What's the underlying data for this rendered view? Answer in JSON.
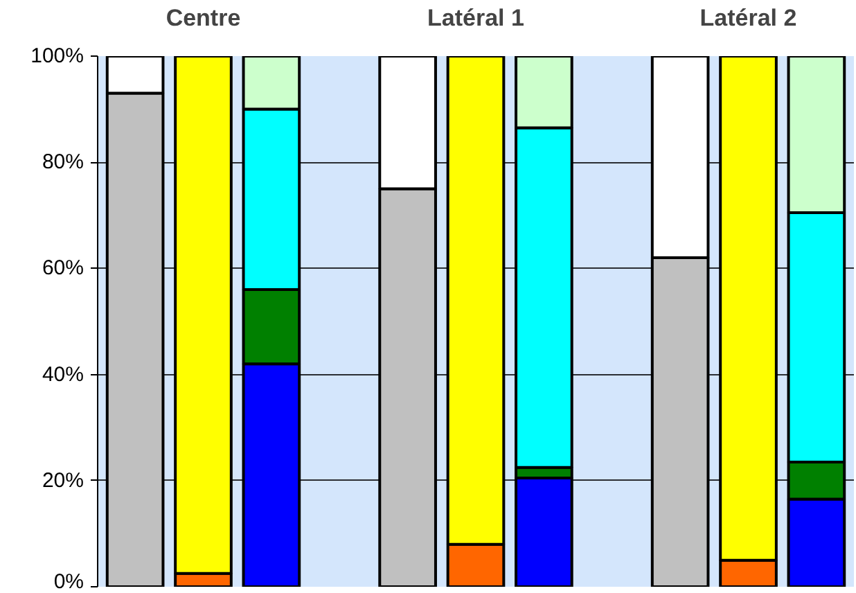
{
  "chart_data": {
    "type": "bar",
    "stacked": true,
    "categories": [
      null,
      "Centre",
      null,
      null,
      "Latéral 1",
      null,
      null,
      "Latéral 2",
      null
    ],
    "series": [
      {
        "color": "#c0c0c0",
        "values": [
          93,
          null,
          null,
          75,
          null,
          null,
          62,
          null,
          null
        ]
      },
      {
        "color": "#ffffff",
        "values": [
          7,
          null,
          null,
          25,
          null,
          null,
          38,
          null,
          null
        ]
      },
      {
        "color": "#ff6600",
        "values": [
          null,
          2.5,
          null,
          null,
          8,
          null,
          null,
          5,
          null
        ]
      },
      {
        "color": "#ffff00",
        "values": [
          null,
          97.5,
          null,
          null,
          92,
          null,
          null,
          95,
          null
        ]
      },
      {
        "color": "#0000ff",
        "values": [
          null,
          null,
          42,
          null,
          null,
          20.5,
          null,
          null,
          16.5
        ]
      },
      {
        "color": "#008000",
        "values": [
          null,
          null,
          14,
          null,
          null,
          2,
          null,
          null,
          7
        ]
      },
      {
        "color": "#00ffff",
        "values": [
          null,
          null,
          34,
          null,
          null,
          64,
          null,
          null,
          47
        ]
      },
      {
        "color": "#ccffcc",
        "values": [
          null,
          null,
          10,
          null,
          null,
          13.5,
          null,
          null,
          29.5
        ]
      }
    ],
    "ylim": [
      0,
      100
    ],
    "yticks": [
      {
        "value": 0,
        "label": "0%"
      },
      {
        "value": 20,
        "label": "20%"
      },
      {
        "value": 40,
        "label": "40%"
      },
      {
        "value": 60,
        "label": "60%"
      },
      {
        "value": 80,
        "label": "80%"
      },
      {
        "value": 100,
        "label": "100%"
      }
    ],
    "grid": "y"
  }
}
